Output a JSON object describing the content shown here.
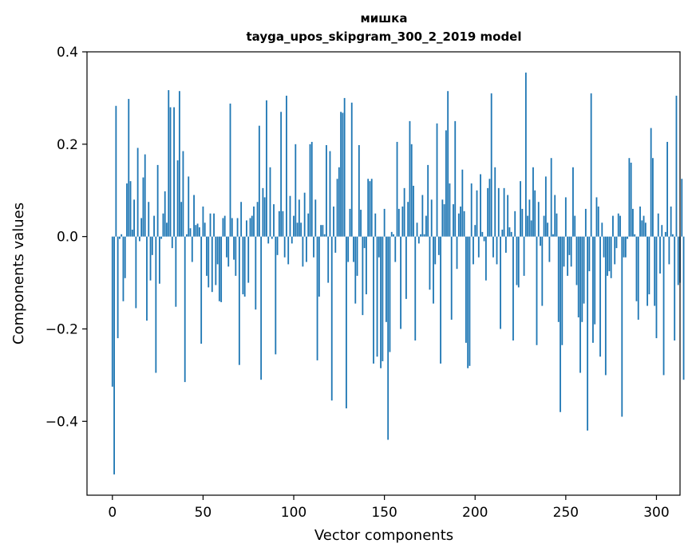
{
  "chart_data": {
    "type": "bar",
    "title": "мишка",
    "subtitle": "tayga_upos_skipgram_300_2_2019 model",
    "xlabel": "Vector components",
    "ylabel": "Components values",
    "xlim": [
      -14,
      313
    ],
    "ylim": [
      -0.56,
      0.4
    ],
    "xticks": [
      0,
      50,
      100,
      150,
      200,
      250,
      300
    ],
    "xtick_labels": [
      "0",
      "50",
      "100",
      "150",
      "200",
      "250",
      "300"
    ],
    "yticks": [
      -0.4,
      -0.2,
      0.0,
      0.2,
      0.4
    ],
    "ytick_labels": [
      "−0.4",
      "−0.2",
      "0.0",
      "0.2",
      "0.4"
    ],
    "grid": false,
    "bar_color": "#1f77b4",
    "values": [
      -0.325,
      -0.515,
      0.283,
      -0.22,
      -0.005,
      0.005,
      -0.14,
      -0.09,
      0.115,
      0.298,
      0.12,
      0.015,
      0.08,
      -0.155,
      0.192,
      -0.01,
      0.04,
      0.128,
      0.178,
      -0.182,
      0.075,
      -0.095,
      -0.04,
      0.045,
      -0.295,
      0.155,
      -0.102,
      -0.005,
      0.05,
      0.098,
      0.03,
      0.317,
      0.28,
      -0.025,
      0.28,
      -0.152,
      0.165,
      0.315,
      0.075,
      0.185,
      -0.315,
      0.005,
      0.13,
      0.018,
      -0.055,
      0.09,
      0.025,
      0.028,
      0.02,
      -0.232,
      0.065,
      0.03,
      -0.085,
      -0.11,
      0.05,
      -0.12,
      0.05,
      -0.105,
      -0.06,
      -0.14,
      -0.142,
      0.04,
      0.045,
      -0.045,
      -0.065,
      0.288,
      0.04,
      -0.05,
      -0.085,
      0.04,
      -0.278,
      0.075,
      -0.125,
      -0.13,
      0.035,
      -0.1,
      0.04,
      0.045,
      0.065,
      -0.158,
      0.075,
      0.24,
      -0.31,
      0.105,
      0.085,
      0.295,
      -0.015,
      0.15,
      -0.005,
      0.07,
      -0.255,
      -0.04,
      0.055,
      0.27,
      0.055,
      -0.045,
      0.305,
      -0.06,
      0.088,
      -0.015,
      0.045,
      0.2,
      0.03,
      0.08,
      0.03,
      -0.065,
      0.095,
      -0.055,
      0.05,
      0.2,
      0.205,
      -0.045,
      0.08,
      -0.268,
      -0.13,
      0.025,
      0.025,
      0.005,
      0.198,
      -0.1,
      0.185,
      -0.355,
      0.065,
      -0.035,
      0.125,
      0.15,
      0.27,
      0.268,
      0.3,
      -0.372,
      -0.055,
      0.06,
      0.29,
      -0.055,
      -0.145,
      -0.085,
      0.198,
      0.058,
      -0.17,
      -0.025,
      -0.125,
      0.125,
      0.12,
      0.125,
      -0.275,
      0.05,
      -0.26,
      -0.045,
      -0.285,
      -0.27,
      0.06,
      -0.185,
      -0.44,
      -0.25,
      0.01,
      0.005,
      -0.055,
      0.205,
      0.06,
      -0.2,
      0.065,
      0.105,
      -0.135,
      0.075,
      0.25,
      0.2,
      0.11,
      -0.225,
      0.03,
      -0.015,
      0.005,
      0.09,
      0.005,
      0.045,
      0.155,
      -0.115,
      0.08,
      -0.145,
      -0.06,
      0.245,
      -0.04,
      -0.275,
      0.08,
      0.07,
      0.23,
      0.315,
      0.115,
      -0.18,
      0.07,
      0.25,
      -0.07,
      0.05,
      0.065,
      0.145,
      0.055,
      -0.23,
      -0.285,
      -0.28,
      0.115,
      -0.06,
      0.025,
      0.1,
      -0.045,
      0.135,
      0.01,
      -0.01,
      -0.095,
      0.105,
      0.125,
      0.31,
      -0.045,
      0.15,
      -0.06,
      0.105,
      -0.2,
      0.015,
      0.105,
      -0.035,
      0.09,
      0.02,
      0.01,
      -0.225,
      0.055,
      -0.105,
      -0.11,
      0.12,
      0.06,
      -0.085,
      0.355,
      0.045,
      0.08,
      0.035,
      0.15,
      0.1,
      -0.235,
      0.075,
      -0.02,
      -0.15,
      0.045,
      0.13,
      0.03,
      -0.055,
      0.17,
      0.005,
      0.09,
      0.05,
      -0.185,
      -0.38,
      -0.235,
      -0.065,
      0.085,
      -0.085,
      -0.04,
      -0.065,
      0.15,
      0.045,
      -0.105,
      -0.175,
      -0.295,
      -0.185,
      -0.145,
      0.06,
      -0.42,
      -0.075,
      0.31,
      -0.23,
      -0.19,
      0.085,
      0.065,
      -0.26,
      0.03,
      -0.045,
      -0.3,
      -0.085,
      -0.075,
      -0.09,
      0.045,
      -0.06,
      -0.025,
      0.05,
      0.045,
      -0.39,
      -0.045,
      -0.045,
      -0.005,
      0.17,
      0.16,
      0.06,
      0.005,
      -0.14,
      -0.18,
      0.065,
      0.035,
      0.045,
      0.03,
      -0.15,
      -0.125,
      0.235,
      0.17,
      -0.15,
      -0.22,
      0.05,
      -0.08,
      0.025,
      -0.3,
      0.01,
      0.205,
      -0.06,
      0.065,
      0.005,
      -0.225,
      0.305,
      -0.105,
      -0.1,
      0.125,
      -0.31
    ]
  }
}
